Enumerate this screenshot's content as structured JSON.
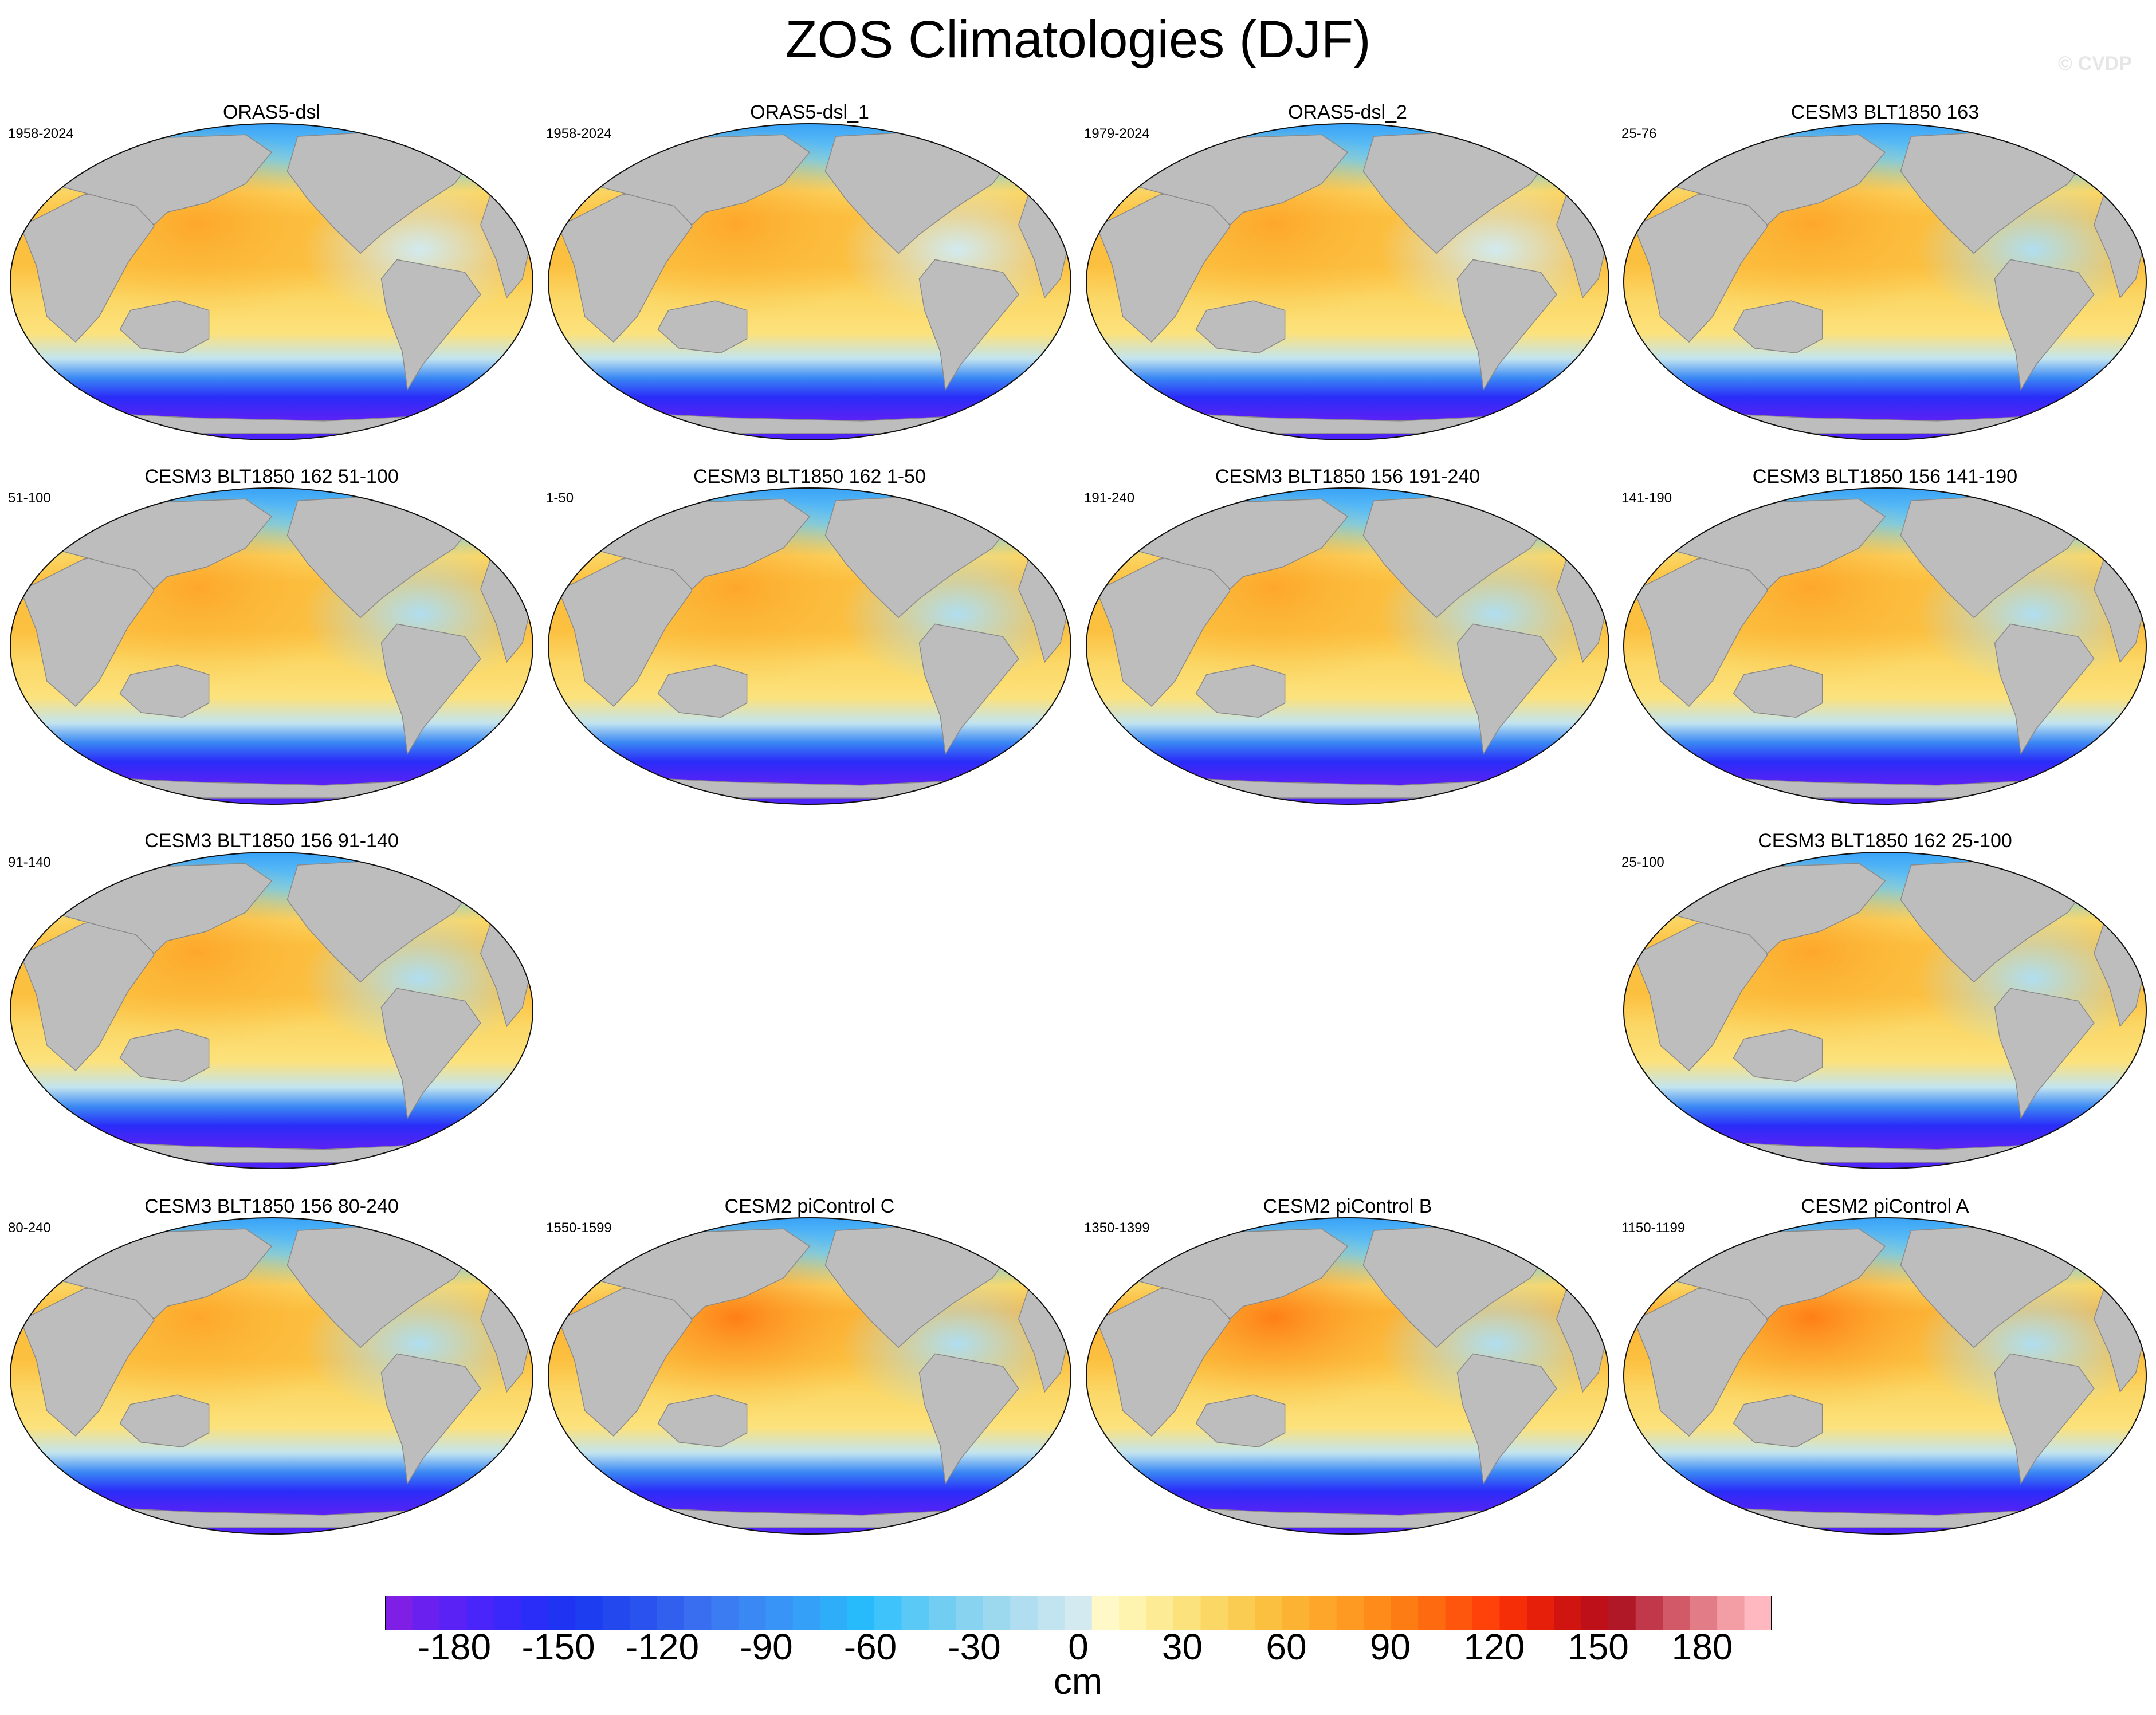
{
  "title": "ZOS Climatologies (DJF)",
  "watermark": "© CVDP",
  "panels": [
    {
      "title": "ORAS5-dsl",
      "years": "1958-2024",
      "style": "obs"
    },
    {
      "title": "ORAS5-dsl_1",
      "years": "1958-2024",
      "style": "obs"
    },
    {
      "title": "ORAS5-dsl_2",
      "years": "1979-2024",
      "style": "obs"
    },
    {
      "title": "CESM3 BLT1850 163",
      "years": "25-76",
      "style": "cesm3"
    },
    {
      "title": "CESM3 BLT1850 162 51-100",
      "years": "51-100",
      "style": "cesm3"
    },
    {
      "title": "CESM3 BLT1850 162 1-50",
      "years": "1-50",
      "style": "cesm3"
    },
    {
      "title": "CESM3 BLT1850 156 191-240",
      "years": "191-240",
      "style": "cesm3"
    },
    {
      "title": "CESM3 BLT1850 156 141-190",
      "years": "141-190",
      "style": "cesm3"
    },
    {
      "title": "CESM3 BLT1850 156 91-140",
      "years": "91-140",
      "style": "cesm3"
    },
    {
      "title": "CESM3 BLT1850 162 25-100",
      "years": "25-100",
      "style": "cesm3"
    },
    {
      "title": "CESM3 BLT1850 156 80-240",
      "years": "80-240",
      "style": "cesm3"
    },
    {
      "title": "CESM2 piControl C",
      "years": "1550-1599",
      "style": "cesm2"
    },
    {
      "title": "CESM2 piControl B",
      "years": "1350-1399",
      "style": "cesm2"
    },
    {
      "title": "CESM2 piControl A",
      "years": "1150-1199",
      "style": "cesm2"
    }
  ],
  "colorbar": {
    "units": "cm",
    "min": -200,
    "max": 200,
    "step": 10,
    "ticks": [
      -180,
      -150,
      -120,
      -90,
      -60,
      -30,
      0,
      30,
      60,
      90,
      120,
      150,
      180
    ],
    "tick_labels": [
      "-180",
      "-150",
      "-120",
      "-90",
      "-60",
      "-30",
      "0",
      "30",
      "60",
      "90",
      "120",
      "150",
      "180"
    ],
    "colors": [
      "#7f1fe6",
      "#6a20ef",
      "#5a22f5",
      "#4a25fa",
      "#3a28fb",
      "#2a2cf8",
      "#1f34f2",
      "#1c3ef0",
      "#2248ee",
      "#2a52ee",
      "#3260ee",
      "#3a6ef0",
      "#3b7cf2",
      "#3a88f4",
      "#3894f6",
      "#35a0f8",
      "#2eaef9",
      "#28bbfb",
      "#3ec4fa",
      "#5bc9f6",
      "#72cdf2",
      "#88d3f0",
      "#9cd9ef",
      "#b0def0",
      "#c2e4f0",
      "#d2eaf0",
      "#fff9c8",
      "#fff3b0",
      "#fdeb96",
      "#fce27c",
      "#fbd766",
      "#fbcc52",
      "#fcc040",
      "#fcb334",
      "#fda62a",
      "#fe9922",
      "#fe8b1a",
      "#fe7c14",
      "#fe6a10",
      "#fe560c",
      "#fe420a",
      "#f62e08",
      "#e51f0a",
      "#d01410",
      "#bd1018",
      "#b01828",
      "#c0384a",
      "#d25a68",
      "#e27c86",
      "#f29ea4",
      "#ffb8c0"
    ]
  },
  "legend_icon": "colorbar"
}
